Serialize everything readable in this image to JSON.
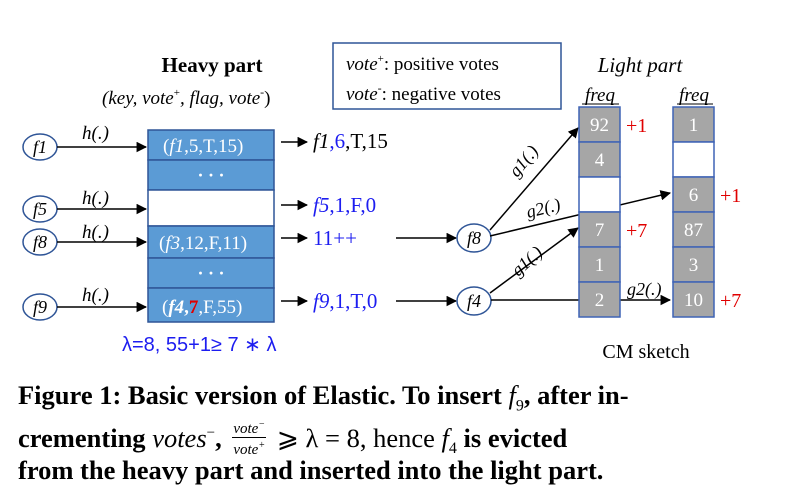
{
  "heavy": {
    "title": "Heavy part",
    "subtitle_parts": [
      "(key, vote",
      "+",
      ", flag, vote",
      "-",
      ")"
    ],
    "buckets": [
      {
        "pre": "(",
        "key": "f1",
        "comma1": ",",
        "vote_pos": "5",
        "rest": ",T,15)"
      },
      {
        "dots": "· · ·"
      },
      {},
      {
        "pre": "(",
        "key": "f3",
        "comma1": ",",
        "vote_pos": "12",
        "rest": ",F,11)"
      },
      {
        "dots": "· · ·"
      },
      {
        "pre": "(",
        "key": "f4",
        "comma1": ",",
        "vote_pos": "7",
        "rest": ",F,55)"
      }
    ],
    "results": [
      {
        "key": "f1",
        "vote": ",6",
        "rest": ",T,15"
      },
      {
        "key": "f5",
        "vote": ",1,F,0",
        "rest": ""
      },
      {
        "key": "",
        "vote": "11++",
        "rest": ""
      },
      {
        "key": "f9",
        "vote": ",1,T,0",
        "rest": ""
      }
    ],
    "condition": "λ=8, 55+1≥ 7 ∗ λ",
    "colors": {
      "bucket": "#5b9bd5",
      "highlight": "#e00000",
      "blue_text": "#1d1df0"
    }
  },
  "flows": [
    {
      "key": "f1",
      "hash": "h(.)"
    },
    {
      "key": "f5",
      "hash": "h(.)"
    },
    {
      "key": "f8",
      "hash": "h(.)"
    },
    {
      "key": "f9",
      "hash": "h(.)"
    }
  ],
  "middle_flows": [
    {
      "key": "f8"
    },
    {
      "key": "f4"
    }
  ],
  "legend": {
    "pos_term": "vote",
    "pos_sign": "+",
    "pos_desc": ": positive votes",
    "neg_term": "vote",
    "neg_sign": "-",
    "neg_desc": ": negative votes"
  },
  "light": {
    "title": "Light part",
    "col1_label": "freq",
    "col2_label": "freq",
    "col1": [
      "92",
      "4",
      "",
      "7",
      "1",
      "2"
    ],
    "col2": [
      "1",
      "",
      "6",
      "87",
      "3",
      "10"
    ],
    "col1_annotations": [
      "+1",
      "",
      "",
      "+7",
      "",
      ""
    ],
    "col2_annotations": [
      "",
      "",
      "+1",
      "",
      "",
      "+7"
    ],
    "hash_labels": [
      "g1(.)",
      "g2(.)",
      "g1(.)",
      "g2(.)"
    ],
    "sketch_label": "CM sketch",
    "colors": {
      "cell": "#a6a6a6",
      "cell_border": "#3f63b5",
      "annot": "#e00000"
    }
  },
  "caption": {
    "line1_a": "Figure 1: Basic version of Elastic. To insert ",
    "line1_f": "f",
    "line1_sub": "9",
    "line1_b": ", after in-",
    "line2_a": "crementing ",
    "line2_votes": "votes",
    "line2_sup": "−",
    "line2_b": ", ",
    "frac_num": "vote",
    "frac_num_sup": "−",
    "frac_den": "vote",
    "frac_den_sup": "+",
    "line2_c": " ⩾ λ = 8, hence ",
    "line2_f": "f",
    "line2_sub": "4",
    "line2_d": " is evicted",
    "line3": "from the heavy part and inserted into the light part."
  }
}
